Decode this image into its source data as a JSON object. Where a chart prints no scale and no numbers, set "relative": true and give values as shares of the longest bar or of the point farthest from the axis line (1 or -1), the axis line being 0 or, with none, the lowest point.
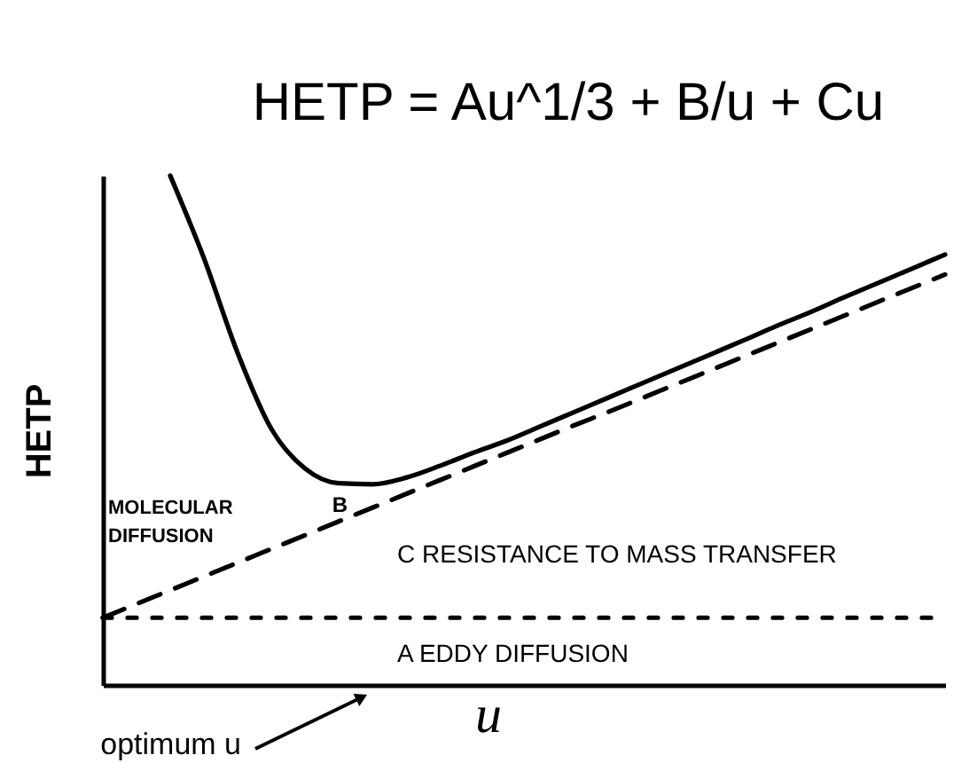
{
  "chart_data": {
    "type": "line",
    "title": "HETP = Au^1/3 + B/u + Cu",
    "xlabel": "u",
    "ylabel": "HETP",
    "relative": true,
    "tick_labels": false,
    "categories": [
      null,
      null,
      null,
      null,
      null,
      null,
      null,
      null,
      null,
      null,
      null,
      null,
      null,
      null,
      null,
      null,
      null,
      null,
      null,
      null,
      null,
      null,
      null,
      null,
      null,
      null
    ],
    "series": [
      {
        "color": "#000000",
        "line_style": "solid",
        "values": [
          null,
          null,
          1.0,
          0.838,
          0.652,
          0.503,
          0.425,
          0.396,
          0.394,
          0.407,
          0.43,
          0.456,
          0.48,
          0.508,
          0.536,
          0.564,
          0.592,
          0.62,
          0.648,
          0.676,
          0.705,
          0.732,
          0.761,
          0.789,
          0.817,
          0.845
        ]
      },
      {
        "color": "#000000",
        "line_style": "dashed",
        "values": [
          0.132,
          0.159,
          0.186,
          0.213,
          0.24,
          0.267,
          0.294,
          0.321,
          0.348,
          0.375,
          0.402,
          0.429,
          0.456,
          0.483,
          0.51,
          0.536,
          0.563,
          0.59,
          0.617,
          0.644,
          0.671,
          0.698,
          0.725,
          0.752,
          0.779,
          0.806
        ]
      },
      {
        "color": "#000000",
        "line_style": "dotted",
        "values": [
          0.132,
          0.132,
          0.132,
          0.132,
          0.132,
          0.132,
          0.132,
          0.132,
          0.132,
          0.132,
          0.132,
          0.132,
          0.132,
          0.132,
          0.132,
          0.132,
          0.132,
          0.132,
          0.132,
          0.132,
          0.132,
          0.132,
          0.132,
          0.132,
          0.132,
          0.132
        ]
      }
    ],
    "annotations": [
      "MOLECULAR DIFFUSION",
      "B",
      "C RESISTANCE TO MASS TRANSFER",
      "A EDDY DIFFUSION",
      "optimum u"
    ]
  }
}
